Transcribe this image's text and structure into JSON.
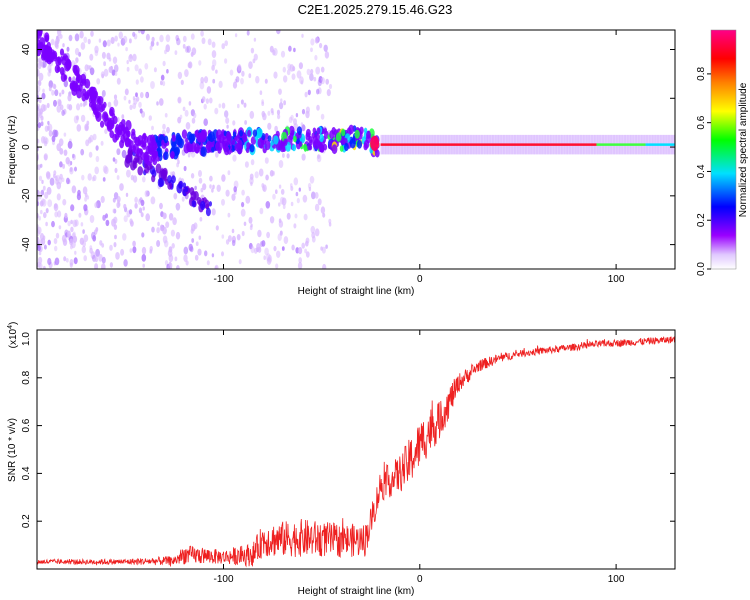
{
  "title": "C2E1.2025.279.15.46.G23",
  "chart_data": [
    {
      "type": "heatmap",
      "name": "spectrogram",
      "xlabel": "Height of straight line (km)",
      "ylabel": "Frequency (Hz)",
      "xlim": [
        -195,
        130
      ],
      "ylim": [
        -50,
        48
      ],
      "xticks": [
        -100,
        0,
        100
      ],
      "yticks": [
        -40,
        -20,
        0,
        20,
        40
      ],
      "ridge": {
        "x": [
          -195,
          -185,
          -175,
          -165,
          -155,
          -145,
          -135,
          -125,
          -115,
          -100,
          -80,
          -60,
          -40,
          -30,
          -25,
          -22,
          0,
          50,
          100,
          130
        ],
        "freq": [
          44,
          37,
          27,
          17,
          8,
          2,
          -2,
          1,
          2,
          2,
          3,
          3,
          3,
          4,
          2,
          1,
          1,
          1,
          1,
          1
        ]
      },
      "low_branch": {
        "x": [
          -150,
          -140,
          -130,
          -120,
          -110,
          -105
        ],
        "freq": [
          -3,
          -8,
          -13,
          -18,
          -23,
          -27
        ]
      },
      "colorbar": {
        "label": "Normalized spectral amplitude",
        "ticks": [
          0.0,
          0.2,
          0.4,
          0.6,
          0.8
        ],
        "range": [
          0,
          0.98
        ],
        "colors": [
          "#ffffff",
          "#9a00ff",
          "#0000ff",
          "#00e0ff",
          "#00ff00",
          "#ffff00",
          "#ff8000",
          "#ff0000",
          "#ff0088"
        ]
      }
    },
    {
      "type": "line",
      "name": "snr",
      "xlabel": "Height of straight line (km)",
      "ylabel": "SNR (10 * v/v)",
      "multiplier": "(x10",
      "multiplier_exp": "4",
      "multiplier_close": ")",
      "xlim": [
        -195,
        130
      ],
      "ylim": [
        0,
        1.0
      ],
      "xticks": [
        -100,
        0,
        100
      ],
      "yticks": [
        0.2,
        0.4,
        0.6,
        0.8,
        1.0
      ],
      "ytick_labels": [
        "0.2",
        "0.4",
        "0.6",
        "0.8",
        "1.0"
      ],
      "color": "#ee2020",
      "x": [
        -195,
        -150,
        -125,
        -120,
        -100,
        -85,
        -80,
        -60,
        -40,
        -28,
        -24,
        -20,
        -15,
        -10,
        -5,
        0,
        5,
        10,
        15,
        20,
        30,
        40,
        50,
        70,
        90,
        110,
        130
      ],
      "mean": [
        0.03,
        0.03,
        0.035,
        0.06,
        0.05,
        0.06,
        0.12,
        0.13,
        0.12,
        0.12,
        0.22,
        0.35,
        0.37,
        0.4,
        0.45,
        0.52,
        0.58,
        0.62,
        0.7,
        0.78,
        0.85,
        0.88,
        0.9,
        0.92,
        0.94,
        0.95,
        0.96
      ],
      "amp": [
        0.01,
        0.012,
        0.02,
        0.04,
        0.03,
        0.05,
        0.07,
        0.08,
        0.07,
        0.07,
        0.06,
        0.07,
        0.07,
        0.08,
        0.1,
        0.1,
        0.1,
        0.08,
        0.07,
        0.04,
        0.025,
        0.02,
        0.015,
        0.015,
        0.015,
        0.015,
        0.015
      ]
    }
  ]
}
